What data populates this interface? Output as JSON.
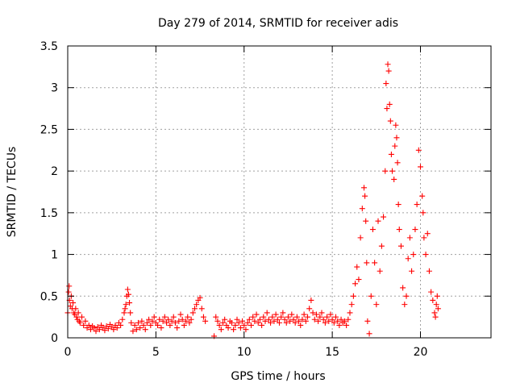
{
  "chart_data": {
    "type": "scatter",
    "title": "Day 279 of 2014, SRMTID for receiver adis",
    "xlabel": "GPS time / hours",
    "ylabel": "SRMTID / TECUs",
    "xlim": [
      0,
      24
    ],
    "ylim": [
      0,
      3.5
    ],
    "grid": true,
    "marker": "+",
    "color": "#ff0000",
    "xticks": [
      0,
      5,
      10,
      15,
      20
    ],
    "xtick_labels": [
      "0",
      "5",
      "10",
      "15",
      "20"
    ],
    "yticks": [
      0,
      0.5,
      1,
      1.5,
      2,
      2.5,
      3,
      3.5
    ],
    "ytick_labels": [
      "0",
      "0.5",
      "1",
      "1.5",
      "2",
      "2.5",
      "3",
      "3.5"
    ],
    "series": [
      {
        "name": "SRMTID",
        "points": [
          [
            0.0,
            0.3
          ],
          [
            0.05,
            0.55
          ],
          [
            0.08,
            0.62
          ],
          [
            0.1,
            0.45
          ],
          [
            0.15,
            0.38
          ],
          [
            0.2,
            0.5
          ],
          [
            0.25,
            0.35
          ],
          [
            0.3,
            0.42
          ],
          [
            0.35,
            0.3
          ],
          [
            0.4,
            0.28
          ],
          [
            0.45,
            0.35
          ],
          [
            0.5,
            0.25
          ],
          [
            0.55,
            0.22
          ],
          [
            0.6,
            0.3
          ],
          [
            0.65,
            0.2
          ],
          [
            0.7,
            0.18
          ],
          [
            0.8,
            0.25
          ],
          [
            0.9,
            0.15
          ],
          [
            1.0,
            0.2
          ],
          [
            1.1,
            0.12
          ],
          [
            1.2,
            0.15
          ],
          [
            1.3,
            0.1
          ],
          [
            1.4,
            0.14
          ],
          [
            1.5,
            0.12
          ],
          [
            1.6,
            0.08
          ],
          [
            1.7,
            0.13
          ],
          [
            1.8,
            0.1
          ],
          [
            1.9,
            0.15
          ],
          [
            2.0,
            0.12
          ],
          [
            2.1,
            0.09
          ],
          [
            2.2,
            0.14
          ],
          [
            2.3,
            0.11
          ],
          [
            2.4,
            0.16
          ],
          [
            2.5,
            0.13
          ],
          [
            2.6,
            0.1
          ],
          [
            2.7,
            0.15
          ],
          [
            2.8,
            0.12
          ],
          [
            2.9,
            0.18
          ],
          [
            3.0,
            0.15
          ],
          [
            3.1,
            0.22
          ],
          [
            3.2,
            0.3
          ],
          [
            3.25,
            0.35
          ],
          [
            3.3,
            0.4
          ],
          [
            3.35,
            0.5
          ],
          [
            3.4,
            0.58
          ],
          [
            3.45,
            0.52
          ],
          [
            3.5,
            0.42
          ],
          [
            3.55,
            0.3
          ],
          [
            3.6,
            0.18
          ],
          [
            3.7,
            0.08
          ],
          [
            3.8,
            0.15
          ],
          [
            3.9,
            0.1
          ],
          [
            4.0,
            0.18
          ],
          [
            4.1,
            0.12
          ],
          [
            4.2,
            0.2
          ],
          [
            4.3,
            0.15
          ],
          [
            4.4,
            0.1
          ],
          [
            4.5,
            0.18
          ],
          [
            4.6,
            0.22
          ],
          [
            4.7,
            0.15
          ],
          [
            4.8,
            0.2
          ],
          [
            4.9,
            0.25
          ],
          [
            5.0,
            0.18
          ],
          [
            5.1,
            0.15
          ],
          [
            5.2,
            0.22
          ],
          [
            5.3,
            0.12
          ],
          [
            5.4,
            0.2
          ],
          [
            5.5,
            0.25
          ],
          [
            5.6,
            0.18
          ],
          [
            5.7,
            0.22
          ],
          [
            5.8,
            0.15
          ],
          [
            5.9,
            0.2
          ],
          [
            6.0,
            0.25
          ],
          [
            6.1,
            0.18
          ],
          [
            6.2,
            0.12
          ],
          [
            6.3,
            0.2
          ],
          [
            6.4,
            0.28
          ],
          [
            6.5,
            0.22
          ],
          [
            6.6,
            0.15
          ],
          [
            6.7,
            0.2
          ],
          [
            6.8,
            0.25
          ],
          [
            6.9,
            0.18
          ],
          [
            7.0,
            0.22
          ],
          [
            7.1,
            0.3
          ],
          [
            7.2,
            0.35
          ],
          [
            7.3,
            0.4
          ],
          [
            7.4,
            0.45
          ],
          [
            7.5,
            0.48
          ],
          [
            7.6,
            0.35
          ],
          [
            7.7,
            0.25
          ],
          [
            7.8,
            0.2
          ],
          [
            8.3,
            0.02
          ],
          [
            8.4,
            0.25
          ],
          [
            8.5,
            0.2
          ],
          [
            8.6,
            0.15
          ],
          [
            8.7,
            0.1
          ],
          [
            8.8,
            0.18
          ],
          [
            8.9,
            0.22
          ],
          [
            9.0,
            0.15
          ],
          [
            9.1,
            0.12
          ],
          [
            9.2,
            0.2
          ],
          [
            9.3,
            0.18
          ],
          [
            9.4,
            0.1
          ],
          [
            9.5,
            0.15
          ],
          [
            9.6,
            0.22
          ],
          [
            9.7,
            0.18
          ],
          [
            9.8,
            0.12
          ],
          [
            9.9,
            0.2
          ],
          [
            10.0,
            0.15
          ],
          [
            10.1,
            0.1
          ],
          [
            10.2,
            0.18
          ],
          [
            10.3,
            0.22
          ],
          [
            10.4,
            0.15
          ],
          [
            10.5,
            0.25
          ],
          [
            10.6,
            0.2
          ],
          [
            10.7,
            0.28
          ],
          [
            10.8,
            0.18
          ],
          [
            10.9,
            0.22
          ],
          [
            11.0,
            0.15
          ],
          [
            11.1,
            0.25
          ],
          [
            11.2,
            0.2
          ],
          [
            11.3,
            0.3
          ],
          [
            11.4,
            0.22
          ],
          [
            11.5,
            0.18
          ],
          [
            11.6,
            0.25
          ],
          [
            11.7,
            0.2
          ],
          [
            11.8,
            0.28
          ],
          [
            11.9,
            0.22
          ],
          [
            12.0,
            0.18
          ],
          [
            12.1,
            0.25
          ],
          [
            12.2,
            0.3
          ],
          [
            12.3,
            0.22
          ],
          [
            12.4,
            0.18
          ],
          [
            12.5,
            0.25
          ],
          [
            12.6,
            0.2
          ],
          [
            12.7,
            0.28
          ],
          [
            12.8,
            0.22
          ],
          [
            12.9,
            0.18
          ],
          [
            13.0,
            0.25
          ],
          [
            13.1,
            0.2
          ],
          [
            13.2,
            0.15
          ],
          [
            13.3,
            0.22
          ],
          [
            13.4,
            0.28
          ],
          [
            13.5,
            0.2
          ],
          [
            13.6,
            0.25
          ],
          [
            13.7,
            0.35
          ],
          [
            13.8,
            0.45
          ],
          [
            13.9,
            0.3
          ],
          [
            14.0,
            0.22
          ],
          [
            14.1,
            0.28
          ],
          [
            14.2,
            0.2
          ],
          [
            14.3,
            0.25
          ],
          [
            14.4,
            0.3
          ],
          [
            14.5,
            0.22
          ],
          [
            14.6,
            0.18
          ],
          [
            14.7,
            0.25
          ],
          [
            14.8,
            0.2
          ],
          [
            14.9,
            0.28
          ],
          [
            15.0,
            0.22
          ],
          [
            15.1,
            0.18
          ],
          [
            15.2,
            0.25
          ],
          [
            15.3,
            0.2
          ],
          [
            15.4,
            0.15
          ],
          [
            15.5,
            0.22
          ],
          [
            15.6,
            0.18
          ],
          [
            15.7,
            0.2
          ],
          [
            15.8,
            0.15
          ],
          [
            15.9,
            0.22
          ],
          [
            16.0,
            0.3
          ],
          [
            16.1,
            0.4
          ],
          [
            16.2,
            0.5
          ],
          [
            16.3,
            0.65
          ],
          [
            16.4,
            0.85
          ],
          [
            16.5,
            0.7
          ],
          [
            16.6,
            1.2
          ],
          [
            16.7,
            1.55
          ],
          [
            16.8,
            1.8
          ],
          [
            16.85,
            1.7
          ],
          [
            16.9,
            1.4
          ],
          [
            16.95,
            0.9
          ],
          [
            17.0,
            0.2
          ],
          [
            17.1,
            0.05
          ],
          [
            17.2,
            0.5
          ],
          [
            17.3,
            1.3
          ],
          [
            17.4,
            0.9
          ],
          [
            17.5,
            0.4
          ],
          [
            17.6,
            1.4
          ],
          [
            17.7,
            0.8
          ],
          [
            17.8,
            1.1
          ],
          [
            17.9,
            1.45
          ],
          [
            18.0,
            2.0
          ],
          [
            18.05,
            3.05
          ],
          [
            18.1,
            2.75
          ],
          [
            18.15,
            3.28
          ],
          [
            18.2,
            3.2
          ],
          [
            18.25,
            2.8
          ],
          [
            18.3,
            2.6
          ],
          [
            18.35,
            2.2
          ],
          [
            18.4,
            2.0
          ],
          [
            18.5,
            1.9
          ],
          [
            18.55,
            2.3
          ],
          [
            18.6,
            2.55
          ],
          [
            18.65,
            2.4
          ],
          [
            18.7,
            2.1
          ],
          [
            18.75,
            1.6
          ],
          [
            18.8,
            1.3
          ],
          [
            18.9,
            1.1
          ],
          [
            19.0,
            0.6
          ],
          [
            19.1,
            0.4
          ],
          [
            19.2,
            0.5
          ],
          [
            19.3,
            0.95
          ],
          [
            19.4,
            1.2
          ],
          [
            19.5,
            0.8
          ],
          [
            19.6,
            1.0
          ],
          [
            19.7,
            1.3
          ],
          [
            19.8,
            1.6
          ],
          [
            19.9,
            2.25
          ],
          [
            20.0,
            2.05
          ],
          [
            20.1,
            1.7
          ],
          [
            20.15,
            1.5
          ],
          [
            20.2,
            1.2
          ],
          [
            20.3,
            1.0
          ],
          [
            20.4,
            1.25
          ],
          [
            20.5,
            0.8
          ],
          [
            20.6,
            0.55
          ],
          [
            20.7,
            0.45
          ],
          [
            20.8,
            0.3
          ],
          [
            20.85,
            0.25
          ],
          [
            20.9,
            0.4
          ],
          [
            20.95,
            0.5
          ],
          [
            21.0,
            0.35
          ]
        ]
      }
    ]
  }
}
